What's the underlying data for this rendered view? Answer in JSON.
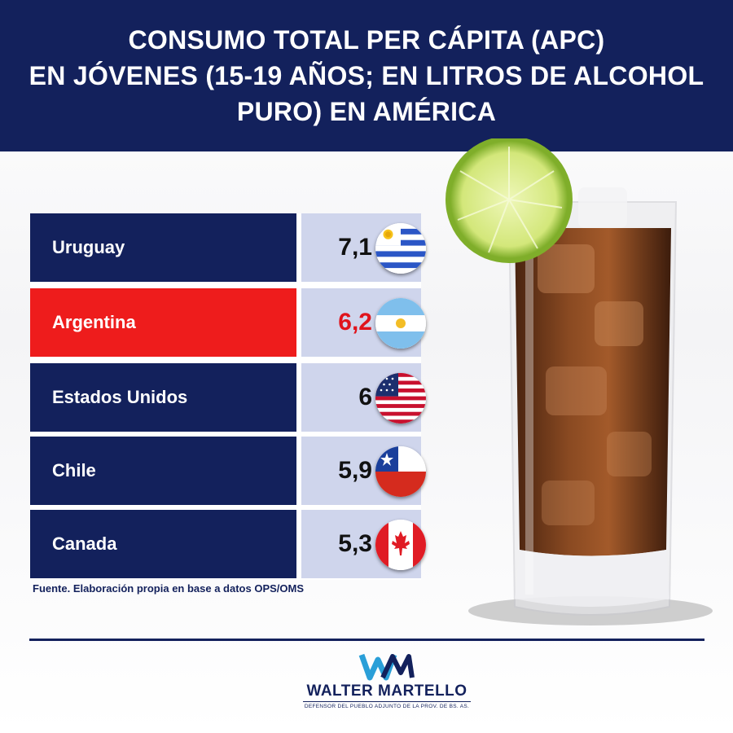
{
  "header": {
    "lines": [
      "CONSUMO TOTAL PER CÁPITA (APC)",
      "EN JÓVENES (15-19 AÑOS; EN LITROS DE ALCOHOL",
      "PURO)  EN  AMÉRICA"
    ]
  },
  "chart_data": {
    "type": "table",
    "title": "CONSUMO TOTAL PER CÁPITA (APC) EN JÓVENES (15-19 AÑOS; EN LITROS DE ALCOHOL PURO)  EN  AMÉRICA",
    "rows": [
      {
        "country": "Uruguay",
        "label": "7,1",
        "value": 7.1,
        "flag": "uruguay-flag-icon"
      },
      {
        "country": "Argentina",
        "label": "6,2",
        "value": 6.2,
        "flag": "argentina-flag-icon",
        "highlight": true
      },
      {
        "country": "Estados Unidos",
        "label": "6",
        "value": 6,
        "flag": "usa-flag-icon"
      },
      {
        "country": "Chile",
        "label": "5,9",
        "value": 5.9,
        "flag": "chile-flag-icon"
      },
      {
        "country": "Canada",
        "label": "5,3",
        "value": 5.3,
        "flag": "canada-flag-icon"
      }
    ],
    "colors": {
      "name_cell": "#13215c",
      "highlight_cell": "#ee1c1c",
      "value_cell": "#cfd5ec",
      "highlight_value": "#e0141c"
    }
  },
  "source": "Fuente. Elaboración propia en base a datos OPS/OMS",
  "logo": {
    "name": "WALTER MARTELLO",
    "subtitle": "DEFENSOR DEL PUEBLO ADJUNTO DE LA PROV. DE BS. AS.",
    "mark": "WM"
  },
  "photo": {
    "icon": "iced-drink-with-lime-icon"
  }
}
